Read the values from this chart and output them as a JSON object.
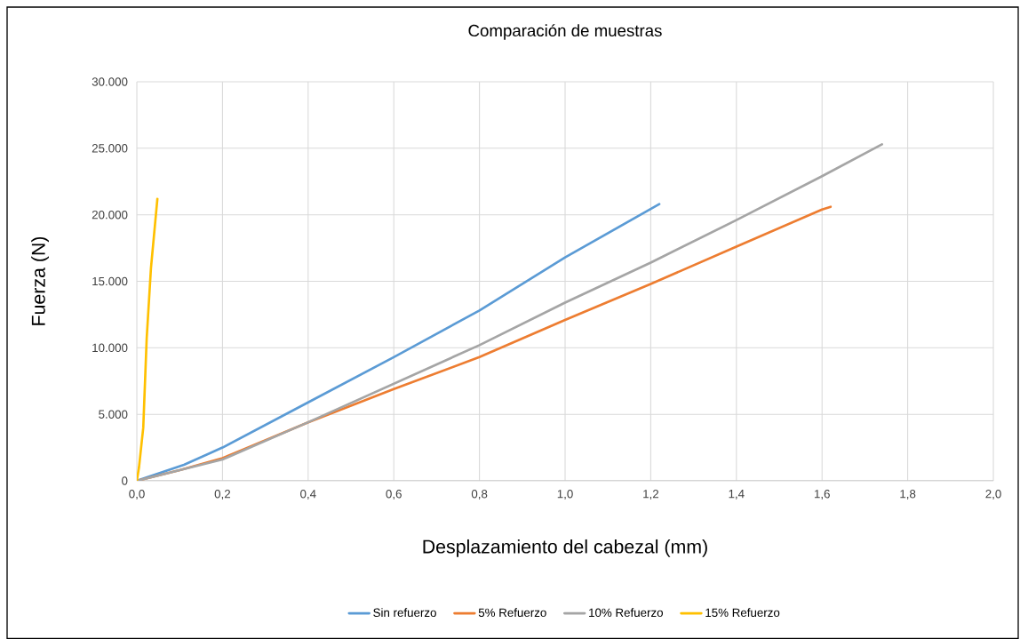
{
  "chart_data": {
    "type": "line",
    "title": "Comparación de muestras",
    "xlabel": "Desplazamiento del cabezal (mm)",
    "ylabel": "Fuerza (N)",
    "xlim": [
      0,
      2
    ],
    "ylim": [
      0,
      30000
    ],
    "xticks": [
      {
        "value": 0,
        "label": "0,0"
      },
      {
        "value": 0.2,
        "label": "0,2"
      },
      {
        "value": 0.4,
        "label": "0,4"
      },
      {
        "value": 0.6,
        "label": "0,6"
      },
      {
        "value": 0.8,
        "label": "0,8"
      },
      {
        "value": 1.0,
        "label": "1,0"
      },
      {
        "value": 1.2,
        "label": "1,2"
      },
      {
        "value": 1.4,
        "label": "1,4"
      },
      {
        "value": 1.6,
        "label": "1,6"
      },
      {
        "value": 1.8,
        "label": "1,8"
      },
      {
        "value": 2.0,
        "label": "2,0"
      }
    ],
    "yticks": [
      0,
      {
        "value": 5000,
        "label": "5.000"
      },
      {
        "value": 10000,
        "label": "10.000"
      },
      {
        "value": 15000,
        "label": "15.000"
      },
      {
        "value": 20000,
        "label": "20.000"
      },
      {
        "value": 25000,
        "label": "25.000"
      },
      {
        "value": 30000,
        "label": "30.000"
      }
    ],
    "grid": true,
    "legend": "bottom",
    "series": [
      {
        "name": "Sin refuerzo",
        "color": "#5b9bd5",
        "x": [
          0,
          0.11,
          0.2,
          0.4,
          0.6,
          0.8,
          1.0,
          1.22
        ],
        "values": [
          0,
          1200,
          2500,
          5900,
          9300,
          12800,
          16800,
          20800
        ]
      },
      {
        "name": "5% Refuerzo",
        "color": "#ed7d31",
        "x": [
          0,
          0.1,
          0.2,
          0.4,
          0.6,
          0.8,
          1.0,
          1.2,
          1.4,
          1.6,
          1.62
        ],
        "values": [
          0,
          800,
          1700,
          4400,
          6900,
          9300,
          12100,
          14800,
          17600,
          20400,
          20600
        ]
      },
      {
        "name": "10% Refuerzo",
        "color": "#a5a5a5",
        "x": [
          0,
          0.1,
          0.2,
          0.4,
          0.6,
          0.8,
          1.0,
          1.2,
          1.4,
          1.6,
          1.74
        ],
        "values": [
          0,
          800,
          1600,
          4400,
          7300,
          10200,
          13400,
          16400,
          19600,
          22900,
          25300
        ]
      },
      {
        "name": "15% Refuerzo",
        "color": "#ffc000",
        "x": [
          0,
          0.005,
          0.015,
          0.023,
          0.033,
          0.048
        ],
        "values": [
          0,
          1000,
          4000,
          10700,
          16000,
          21200
        ]
      }
    ]
  }
}
